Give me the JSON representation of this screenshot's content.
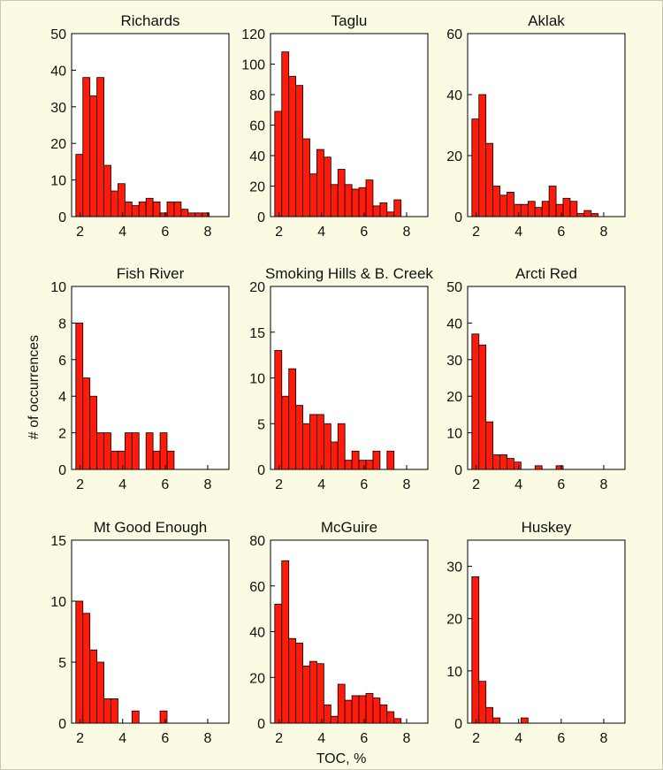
{
  "chart_data": {
    "type": "bar",
    "xlabel": "TOC, %",
    "ylabel": "# of occurrences",
    "bin_width": 0.33,
    "x_start": 1.8,
    "xlim": [
      1.6,
      9.0
    ],
    "xticks": [
      2,
      4,
      6,
      8
    ],
    "panels": [
      {
        "title": "Richards",
        "ylim": [
          0,
          50
        ],
        "yticks": [
          0,
          10,
          20,
          30,
          40,
          50
        ],
        "values": [
          17,
          38,
          33,
          38,
          14,
          7,
          9,
          4,
          3,
          4,
          5,
          4,
          1,
          4,
          4,
          2,
          1,
          1,
          1
        ]
      },
      {
        "title": "Taglu",
        "ylim": [
          0,
          120
        ],
        "yticks": [
          0,
          20,
          40,
          60,
          80,
          100,
          120
        ],
        "values": [
          69,
          108,
          92,
          86,
          51,
          28,
          44,
          39,
          21,
          31,
          21,
          18,
          19,
          24,
          7,
          9,
          3,
          11
        ]
      },
      {
        "title": "Aklak",
        "ylim": [
          0,
          60
        ],
        "yticks": [
          0,
          20,
          40,
          60
        ],
        "values": [
          32,
          40,
          24,
          10,
          7,
          8,
          4,
          4,
          5,
          3,
          5,
          10,
          4,
          6,
          5,
          1,
          2,
          1
        ]
      },
      {
        "title": "Fish River",
        "ylim": [
          0,
          10
        ],
        "yticks": [
          0,
          2,
          4,
          6,
          8,
          10
        ],
        "values": [
          8,
          5,
          4,
          2,
          2,
          1,
          1,
          2,
          2,
          0,
          2,
          1,
          2,
          1
        ]
      },
      {
        "title": "Smoking Hills & B. Creek",
        "ylim": [
          0,
          20
        ],
        "yticks": [
          0,
          5,
          10,
          15,
          20
        ],
        "values": [
          13,
          8,
          11,
          7,
          5,
          6,
          6,
          5,
          3,
          5,
          1,
          2,
          1,
          1,
          2,
          0,
          2
        ]
      },
      {
        "title": "Arcti Red",
        "ylim": [
          0,
          50
        ],
        "yticks": [
          0,
          10,
          20,
          30,
          40,
          50
        ],
        "values": [
          37,
          34,
          13,
          4,
          4,
          3,
          2,
          0,
          0,
          1,
          0,
          0,
          1
        ]
      },
      {
        "title": "Mt Good Enough",
        "ylim": [
          0,
          15
        ],
        "yticks": [
          0,
          5,
          10,
          15
        ],
        "values": [
          10,
          9,
          6,
          5,
          2,
          2,
          0,
          0,
          1,
          0,
          0,
          0,
          1
        ]
      },
      {
        "title": "McGuire",
        "ylim": [
          0,
          80
        ],
        "yticks": [
          0,
          20,
          40,
          60,
          80
        ],
        "values": [
          52,
          71,
          37,
          35,
          25,
          27,
          26,
          8,
          3,
          17,
          10,
          12,
          12,
          13,
          11,
          8,
          5,
          2
        ]
      },
      {
        "title": "Huskey",
        "ylim": [
          0,
          35
        ],
        "yticks": [
          0,
          10,
          20,
          30
        ],
        "values": [
          28,
          8,
          3,
          1,
          0,
          0,
          0,
          1
        ]
      }
    ]
  }
}
